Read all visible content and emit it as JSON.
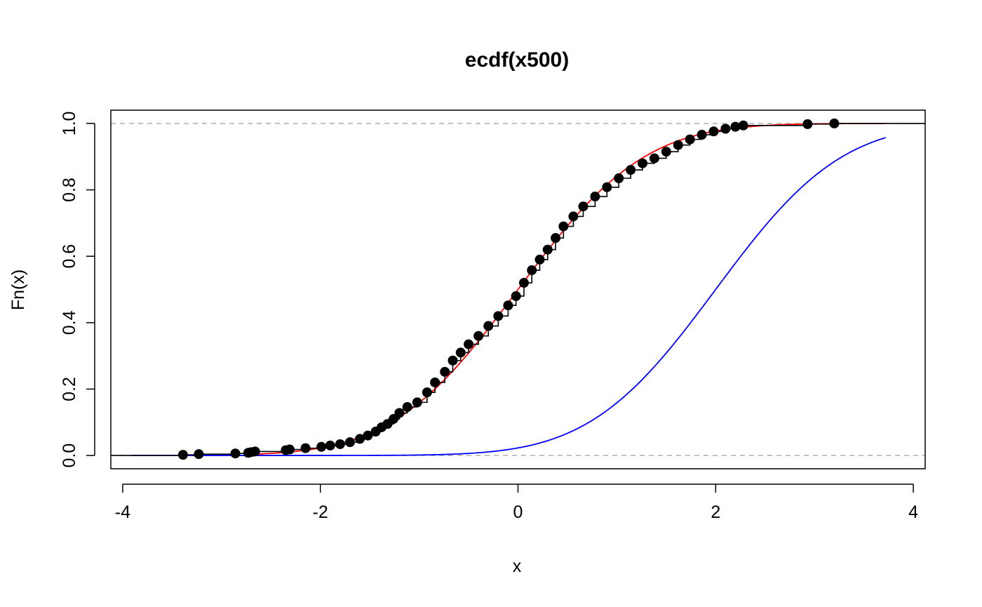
{
  "chart_data": {
    "type": "line",
    "title": "ecdf(x500)",
    "xlabel": "x",
    "ylabel": "Fn(x)",
    "xlim": [
      -4.12,
      4.12
    ],
    "ylim": [
      -0.04,
      1.04
    ],
    "x_ticks": [
      -4,
      -2,
      0,
      2,
      4
    ],
    "x_tick_labels": [
      "-4",
      "-2",
      "0",
      "2",
      "4"
    ],
    "y_ticks": [
      0.0,
      0.2,
      0.4,
      0.6,
      0.8,
      1.0
    ],
    "y_tick_labels": [
      "0.0",
      "0.2",
      "0.4",
      "0.6",
      "0.8",
      "1.0"
    ],
    "grid": false,
    "reference_lines": [
      {
        "y": 0.0,
        "style": "dashed",
        "color": "#b3b3b3"
      },
      {
        "y": 1.0,
        "style": "dashed",
        "color": "#b3b3b3"
      }
    ],
    "series": [
      {
        "kind": "ecdf",
        "color": "#000000",
        "marker": "filled-circle",
        "points": [
          [
            -3.39,
            0.002
          ],
          [
            -3.23,
            0.004
          ],
          [
            -2.86,
            0.006
          ],
          [
            -2.73,
            0.008
          ],
          [
            -2.7,
            0.01
          ],
          [
            -2.66,
            0.012
          ],
          [
            -2.35,
            0.016
          ],
          [
            -2.31,
            0.018
          ],
          [
            -2.15,
            0.022
          ],
          [
            -1.99,
            0.026
          ],
          [
            -1.9,
            0.03
          ],
          [
            -1.8,
            0.034
          ],
          [
            -1.7,
            0.04
          ],
          [
            -1.6,
            0.05
          ],
          [
            -1.52,
            0.06
          ],
          [
            -1.44,
            0.072
          ],
          [
            -1.38,
            0.085
          ],
          [
            -1.32,
            0.095
          ],
          [
            -1.26,
            0.11
          ],
          [
            -1.2,
            0.128
          ],
          [
            -1.12,
            0.146
          ],
          [
            -1.02,
            0.16
          ],
          [
            -0.92,
            0.19
          ],
          [
            -0.84,
            0.22
          ],
          [
            -0.74,
            0.252
          ],
          [
            -0.66,
            0.286
          ],
          [
            -0.58,
            0.31
          ],
          [
            -0.5,
            0.335
          ],
          [
            -0.4,
            0.36
          ],
          [
            -0.3,
            0.39
          ],
          [
            -0.2,
            0.42
          ],
          [
            -0.1,
            0.452
          ],
          [
            -0.02,
            0.48
          ],
          [
            0.06,
            0.52
          ],
          [
            0.14,
            0.558
          ],
          [
            0.22,
            0.59
          ],
          [
            0.3,
            0.62
          ],
          [
            0.38,
            0.655
          ],
          [
            0.46,
            0.69
          ],
          [
            0.56,
            0.72
          ],
          [
            0.66,
            0.75
          ],
          [
            0.78,
            0.78
          ],
          [
            0.9,
            0.808
          ],
          [
            1.02,
            0.835
          ],
          [
            1.14,
            0.86
          ],
          [
            1.26,
            0.88
          ],
          [
            1.38,
            0.895
          ],
          [
            1.5,
            0.915
          ],
          [
            1.62,
            0.935
          ],
          [
            1.74,
            0.952
          ],
          [
            1.86,
            0.966
          ],
          [
            1.98,
            0.976
          ],
          [
            2.1,
            0.984
          ],
          [
            2.2,
            0.99
          ],
          [
            2.28,
            0.994
          ],
          [
            2.93,
            0.998
          ],
          [
            3.2,
            1.0
          ]
        ]
      },
      {
        "kind": "cdf-curve",
        "name": "",
        "distribution": "normal",
        "mean": 0,
        "sd": 1,
        "color": "#ff0000",
        "x_range": [
          -2.7,
          3.7
        ]
      },
      {
        "kind": "cdf-curve",
        "name": "",
        "distribution": "normal",
        "mean": 2,
        "sd": 1,
        "color": "#0000ff",
        "x_range": [
          -3.9,
          3.72
        ]
      }
    ]
  }
}
